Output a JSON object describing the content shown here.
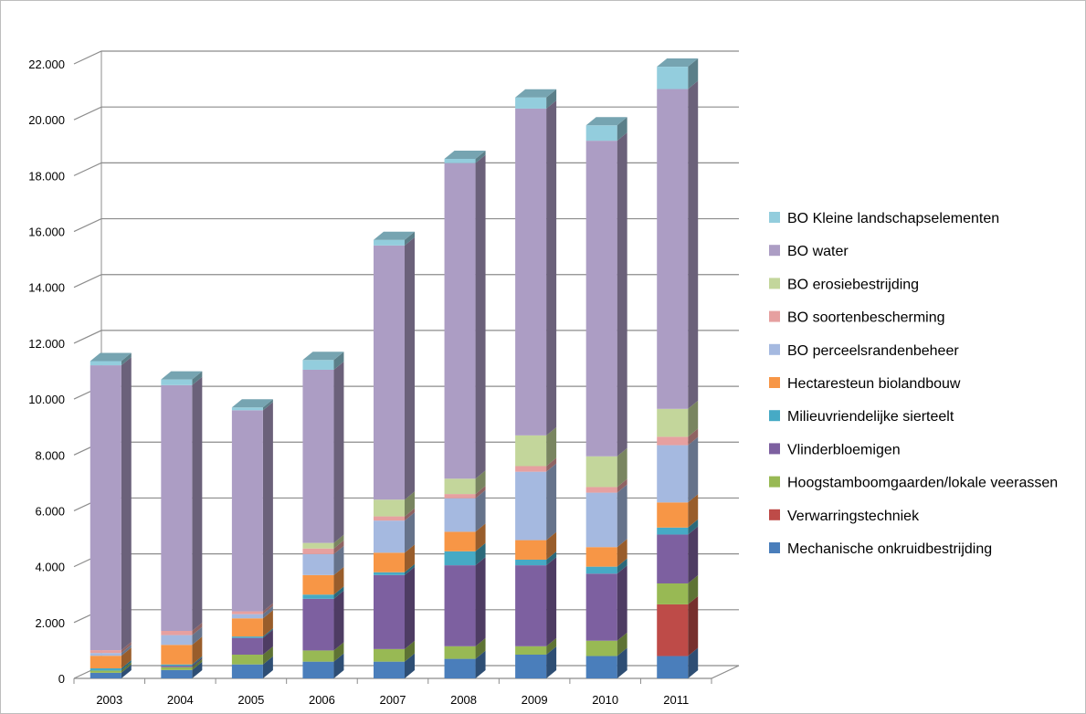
{
  "chart_data": {
    "type": "bar",
    "stacked": true,
    "three_d": true,
    "title": "",
    "xlabel": "",
    "ylabel": "",
    "ylim": [
      0,
      22000
    ],
    "y_ticks": [
      0,
      2000,
      4000,
      6000,
      8000,
      10000,
      12000,
      14000,
      16000,
      18000,
      20000,
      22000
    ],
    "y_tick_labels": [
      "0",
      "2.000",
      "4.000",
      "6.000",
      "8.000",
      "10.000",
      "12.000",
      "14.000",
      "16.000",
      "18.000",
      "20.000",
      "22.000"
    ],
    "grid": true,
    "legend_position": "right",
    "categories": [
      "2003",
      "2004",
      "2005",
      "2006",
      "2007",
      "2008",
      "2009",
      "2010",
      "2011"
    ],
    "series": [
      {
        "name": "Mechanische onkruidbestrijding",
        "color": "#4a7ebb",
        "values": [
          200,
          300,
          500,
          600,
          600,
          700,
          850,
          800,
          800
        ]
      },
      {
        "name": "Verwarringstechniek",
        "color": "#be4b48",
        "values": [
          0,
          0,
          0,
          0,
          0,
          0,
          0,
          0,
          1850
        ]
      },
      {
        "name": "Hoogstamboomgaarden/lokale veerassen",
        "color": "#98b954",
        "values": [
          80,
          100,
          350,
          400,
          450,
          450,
          300,
          550,
          750
        ]
      },
      {
        "name": "Vlinderbloemigen",
        "color": "#7d60a0",
        "values": [
          0,
          50,
          600,
          1850,
          2650,
          2900,
          2900,
          2400,
          1750
        ]
      },
      {
        "name": "Milieuvriendelijke sierteelt",
        "color": "#46aac5",
        "values": [
          80,
          50,
          50,
          150,
          100,
          500,
          200,
          250,
          250
        ]
      },
      {
        "name": "Hectaresteun biolandbouw",
        "color": "#f79646",
        "values": [
          450,
          700,
          650,
          700,
          700,
          700,
          700,
          700,
          900
        ]
      },
      {
        "name": "BO perceelsrandenbeheer",
        "color": "#a5b9e0",
        "values": [
          100,
          350,
          150,
          750,
          1150,
          1200,
          2450,
          1950,
          2050
        ]
      },
      {
        "name": "BO soortenbescherming",
        "color": "#e6a0a0",
        "values": [
          100,
          150,
          100,
          200,
          150,
          150,
          200,
          200,
          300
        ]
      },
      {
        "name": "BO erosiebestrijding",
        "color": "#c3d69b",
        "values": [
          0,
          0,
          0,
          200,
          600,
          550,
          1100,
          1100,
          1000
        ]
      },
      {
        "name": "BO water",
        "color": "#ac9dc4",
        "values": [
          10200,
          8800,
          7200,
          6200,
          9100,
          11300,
          11700,
          11300,
          11450
        ]
      },
      {
        "name": "BO Kleine landschapselementen",
        "color": "#93cddd",
        "values": [
          150,
          200,
          100,
          350,
          200,
          150,
          400,
          550,
          800
        ]
      }
    ]
  }
}
